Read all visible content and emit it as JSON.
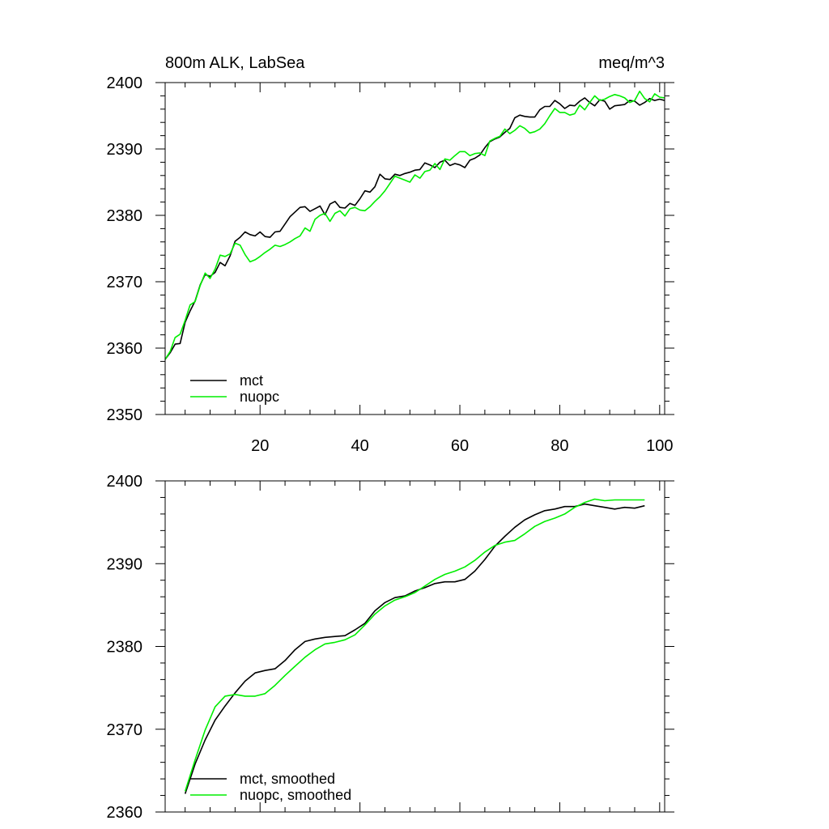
{
  "chart_data": [
    {
      "type": "line",
      "title_left": "800m ALK, LabSea",
      "title_right": "meq/m^3",
      "xlim": [
        1,
        101
      ],
      "ylim": [
        2350,
        2400
      ],
      "xticks": [
        20,
        40,
        60,
        80,
        100
      ],
      "yticks": [
        2350,
        2360,
        2370,
        2380,
        2390,
        2400
      ],
      "xtick_labels": [
        "20",
        "40",
        "60",
        "80",
        "100"
      ],
      "ytick_labels": [
        "2350",
        "2360",
        "2370",
        "2380",
        "2390",
        "2400"
      ],
      "legend": [
        "mct",
        "nuopc"
      ],
      "series": [
        {
          "name": "mct",
          "color": "#000000",
          "x": [
            1,
            2,
            3,
            4,
            5,
            6,
            7,
            8,
            9,
            10,
            11,
            12,
            13,
            14,
            15,
            16,
            17,
            18,
            19,
            20,
            21,
            22,
            23,
            24,
            25,
            26,
            27,
            28,
            29,
            30,
            31,
            32,
            33,
            34,
            35,
            36,
            37,
            38,
            39,
            40,
            41,
            42,
            43,
            44,
            45,
            46,
            47,
            48,
            49,
            50,
            51,
            52,
            53,
            54,
            55,
            56,
            57,
            58,
            59,
            60,
            61,
            62,
            63,
            64,
            65,
            66,
            67,
            68,
            69,
            70,
            71,
            72,
            73,
            74,
            75,
            76,
            77,
            78,
            79,
            80,
            81,
            82,
            83,
            84,
            85,
            86,
            87,
            88,
            89,
            90,
            91,
            92,
            93,
            94,
            95,
            96,
            97,
            98,
            99,
            100,
            101
          ],
          "values": [
            2358.3,
            2359.3,
            2360.6,
            2360.7,
            2363.9,
            2365.6,
            2367.1,
            2369.5,
            2371.1,
            2370.8,
            2371.4,
            2372.9,
            2372.4,
            2373.9,
            2376.1,
            2376.7,
            2377.5,
            2377.1,
            2376.9,
            2377.5,
            2376.8,
            2376.7,
            2377.5,
            2377.6,
            2378.7,
            2379.8,
            2380.5,
            2381.2,
            2381.3,
            2380.6,
            2381.0,
            2381.4,
            2380.1,
            2381.7,
            2382.1,
            2381.2,
            2381.1,
            2381.8,
            2381.5,
            2382.5,
            2383.7,
            2383.5,
            2384.3,
            2386.2,
            2385.5,
            2385.4,
            2386.2,
            2386.0,
            2386.3,
            2386.5,
            2386.8,
            2386.9,
            2387.9,
            2387.6,
            2387.2,
            2388.0,
            2388.3,
            2387.5,
            2387.8,
            2387.6,
            2387.2,
            2388.3,
            2388.6,
            2389.1,
            2390.2,
            2391.1,
            2391.5,
            2391.8,
            2392.5,
            2393.1,
            2394.7,
            2395.1,
            2394.9,
            2394.8,
            2394.8,
            2395.9,
            2396.4,
            2396.4,
            2397.3,
            2396.8,
            2396.1,
            2396.6,
            2396.5,
            2397.2,
            2397.7,
            2397.0,
            2396.5,
            2397.4,
            2397.2,
            2396.0,
            2396.5,
            2396.6,
            2396.7,
            2397.3,
            2397.2,
            2396.6,
            2397.0,
            2397.6,
            2397.3,
            2397.5,
            2397.3
          ]
        },
        {
          "name": "nuopc",
          "color": "#00ee00",
          "x": [
            1,
            2,
            3,
            4,
            5,
            6,
            7,
            8,
            9,
            10,
            11,
            12,
            13,
            14,
            15,
            16,
            17,
            18,
            19,
            20,
            21,
            22,
            23,
            24,
            25,
            26,
            27,
            28,
            29,
            30,
            31,
            32,
            33,
            34,
            35,
            36,
            37,
            38,
            39,
            40,
            41,
            42,
            43,
            44,
            45,
            46,
            47,
            48,
            49,
            50,
            51,
            52,
            53,
            54,
            55,
            56,
            57,
            58,
            59,
            60,
            61,
            62,
            63,
            64,
            65,
            66,
            67,
            68,
            69,
            70,
            71,
            72,
            73,
            74,
            75,
            76,
            77,
            78,
            79,
            80,
            81,
            82,
            83,
            84,
            85,
            86,
            87,
            88,
            89,
            90,
            91,
            92,
            93,
            94,
            95,
            96,
            97,
            98,
            99,
            100,
            101
          ],
          "values": [
            2358.3,
            2359.5,
            2361.6,
            2362.1,
            2364.2,
            2366.5,
            2367.0,
            2369.4,
            2371.3,
            2370.5,
            2371.9,
            2374.0,
            2373.8,
            2374.2,
            2375.8,
            2375.5,
            2374.1,
            2373.0,
            2373.3,
            2373.8,
            2374.4,
            2374.9,
            2375.5,
            2375.3,
            2375.6,
            2376.0,
            2376.5,
            2376.9,
            2378.1,
            2377.6,
            2379.4,
            2380.0,
            2380.3,
            2379.1,
            2380.3,
            2380.7,
            2379.9,
            2381.0,
            2381.2,
            2380.8,
            2380.7,
            2381.3,
            2382.1,
            2382.8,
            2383.7,
            2384.8,
            2385.9,
            2385.6,
            2385.3,
            2385.0,
            2386.1,
            2385.6,
            2386.6,
            2386.8,
            2387.8,
            2386.9,
            2388.5,
            2388.3,
            2389.0,
            2389.6,
            2389.6,
            2389.0,
            2389.3,
            2389.4,
            2389.0,
            2391.2,
            2391.6,
            2391.9,
            2393.0,
            2392.3,
            2392.8,
            2393.5,
            2393.1,
            2392.4,
            2392.6,
            2393.0,
            2393.8,
            2395.0,
            2396.1,
            2395.5,
            2395.5,
            2395.1,
            2395.3,
            2396.6,
            2395.9,
            2397.0,
            2398.0,
            2397.3,
            2397.5,
            2397.9,
            2398.2,
            2398.0,
            2397.7,
            2397.0,
            2397.3,
            2398.7,
            2397.6,
            2397.1,
            2398.3,
            2397.8,
            2397.7
          ]
        }
      ]
    },
    {
      "type": "line",
      "title_left": "",
      "title_right": "",
      "xlim": [
        1,
        101
      ],
      "ylim": [
        2360,
        2400
      ],
      "xticks": [
        20,
        40,
        60,
        80,
        100
      ],
      "yticks": [
        2360,
        2370,
        2380,
        2390,
        2400
      ],
      "xtick_labels": [],
      "ytick_labels": [
        "2360",
        "2370",
        "2380",
        "2390",
        "2400"
      ],
      "legend": [
        "mct, smoothed",
        "nuopc, smoothed"
      ],
      "series": [
        {
          "name": "mct, smoothed",
          "color": "#000000",
          "x": [
            5,
            7,
            9,
            11,
            13,
            15,
            17,
            19,
            21,
            23,
            25,
            27,
            29,
            31,
            33,
            35,
            37,
            39,
            41,
            43,
            45,
            47,
            49,
            51,
            53,
            55,
            57,
            59,
            61,
            63,
            65,
            67,
            69,
            71,
            73,
            75,
            77,
            79,
            81,
            83,
            85,
            87,
            89,
            91,
            93,
            95,
            97
          ],
          "values": [
            2362.2,
            2365.8,
            2368.7,
            2371.1,
            2372.8,
            2374.4,
            2375.8,
            2376.8,
            2377.1,
            2377.3,
            2378.3,
            2379.6,
            2380.6,
            2380.9,
            2381.1,
            2381.2,
            2381.3,
            2382.0,
            2382.8,
            2384.3,
            2385.3,
            2385.9,
            2386.1,
            2386.7,
            2387.1,
            2387.6,
            2387.8,
            2387.8,
            2388.1,
            2389.1,
            2390.5,
            2392.1,
            2393.3,
            2394.4,
            2395.3,
            2395.9,
            2396.4,
            2396.6,
            2396.9,
            2396.9,
            2397.2,
            2397.0,
            2396.8,
            2396.6,
            2396.8,
            2396.7,
            2397.0
          ]
        },
        {
          "name": "nuopc, smoothed",
          "color": "#00ee00",
          "x": [
            5,
            7,
            9,
            11,
            13,
            15,
            17,
            19,
            21,
            23,
            25,
            27,
            29,
            31,
            33,
            35,
            37,
            39,
            41,
            43,
            45,
            47,
            49,
            51,
            53,
            55,
            57,
            59,
            61,
            63,
            65,
            67,
            69,
            71,
            73,
            75,
            77,
            79,
            81,
            83,
            85,
            87,
            89,
            91,
            93,
            95,
            97
          ],
          "values": [
            2362.5,
            2366.3,
            2369.9,
            2372.7,
            2374.0,
            2374.2,
            2374.0,
            2374.0,
            2374.3,
            2375.3,
            2376.5,
            2377.6,
            2378.7,
            2379.6,
            2380.3,
            2380.5,
            2380.8,
            2381.4,
            2382.6,
            2383.9,
            2384.9,
            2385.6,
            2386.0,
            2386.5,
            2387.3,
            2388.1,
            2388.7,
            2389.1,
            2389.6,
            2390.4,
            2391.4,
            2392.2,
            2392.6,
            2392.8,
            2393.6,
            2394.5,
            2395.1,
            2395.5,
            2396.0,
            2396.8,
            2397.4,
            2397.8,
            2397.6,
            2397.7,
            2397.7,
            2397.7,
            2397.7
          ]
        }
      ]
    }
  ]
}
